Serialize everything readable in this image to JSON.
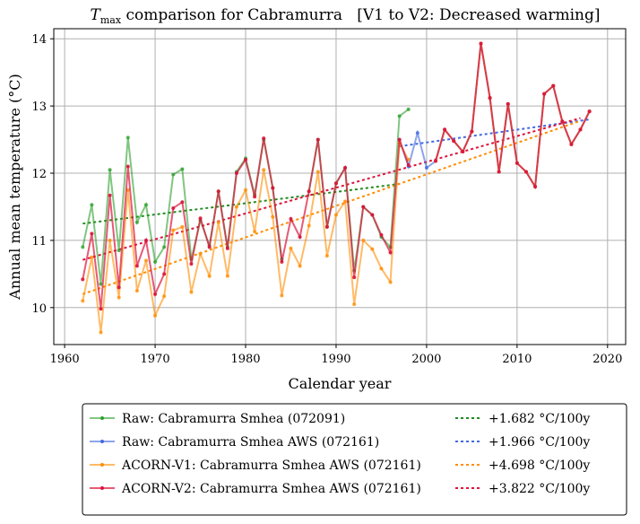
{
  "chart_data": {
    "type": "line",
    "title_var": "T",
    "title_sub": "max",
    "title": " comparison for Cabramurra   [V1 to V2: Decreased warming]",
    "xlabel": "Calendar year",
    "ylabel": "Annual mean temperature (°C)",
    "xlim": [
      1958.8,
      2022
    ],
    "ylim": [
      9.45,
      14.15
    ],
    "xticks": [
      1960,
      1970,
      1980,
      1990,
      2000,
      2010,
      2020
    ],
    "yticks": [
      10,
      11,
      12,
      13,
      14
    ],
    "grid": true,
    "legend_placement": "below",
    "series": [
      {
        "name": "Raw: Cabramurra Smhea (072091)",
        "color": "#2ca02c",
        "alpha": 0.6,
        "start": 1962,
        "values": [
          10.9,
          11.53,
          10.35,
          12.05,
          10.85,
          12.53,
          11.27,
          11.53,
          10.68,
          10.9,
          11.98,
          12.06,
          10.72,
          11.3,
          10.92,
          11.73,
          10.9,
          12.02,
          12.22,
          11.68,
          12.5,
          11.78,
          10.72,
          null,
          null,
          11.73,
          12.5,
          11.2,
          11.85,
          12.08,
          10.55,
          11.5,
          11.38,
          11.05,
          10.9,
          12.85,
          12.95
        ],
        "trend_label": "+1.682 °C/100y",
        "trend_color": "#228b22",
        "trend": [
          1962,
          11.25,
          1997,
          11.84
        ]
      },
      {
        "name": "Raw: Cabramurra Smhea AWS (072161)",
        "color": "#4169e1",
        "alpha": 0.6,
        "start": 1997,
        "values": [
          12.5,
          12.1,
          12.6,
          12.08,
          12.18,
          12.65,
          12.48,
          12.32,
          12.62,
          13.93,
          13.12,
          12.02,
          13.03,
          12.15,
          12.02,
          11.8,
          13.18,
          13.3,
          12.77,
          12.43,
          12.65,
          12.92
        ],
        "trend_label": "+1.966 °C/100y",
        "trend_color": "#4169e1",
        "trend": [
          1997,
          12.4,
          2018,
          12.8
        ]
      },
      {
        "name": "ACORN-V1: Cabramurra Smhea AWS (072161)",
        "color": "#ff8c00",
        "alpha": 0.6,
        "start": 1962,
        "values": [
          10.1,
          10.75,
          9.63,
          11.0,
          10.15,
          11.75,
          10.25,
          10.7,
          9.88,
          10.17,
          11.15,
          11.2,
          10.23,
          10.8,
          10.47,
          11.27,
          10.47,
          11.5,
          11.75,
          11.13,
          12.05,
          11.35,
          10.18,
          10.88,
          10.62,
          11.22,
          12.02,
          10.77,
          11.38,
          11.58,
          10.05,
          11.0,
          10.87,
          10.58,
          10.38,
          12.45,
          12.2,
          null,
          null,
          12.18,
          12.65,
          12.48,
          12.32,
          12.62,
          13.93,
          13.12,
          12.02,
          13.03,
          12.15,
          12.02,
          11.8,
          13.18,
          13.3,
          12.77,
          12.43,
          12.65,
          12.92
        ],
        "trend_label": "+4.698 °C/100y",
        "trend_color": "#ff8c00",
        "trend": [
          1962,
          10.2,
          2017,
          12.78
        ]
      },
      {
        "name": "ACORN-V2: Cabramurra Smhea AWS (072161)",
        "color": "#dc143c",
        "alpha": 0.7,
        "start": 1962,
        "values": [
          10.42,
          11.1,
          9.98,
          11.67,
          10.3,
          12.1,
          10.62,
          11.0,
          10.2,
          10.5,
          11.48,
          11.57,
          10.65,
          11.33,
          10.9,
          11.73,
          10.88,
          12.0,
          12.2,
          11.65,
          12.52,
          11.78,
          10.68,
          11.32,
          11.05,
          11.73,
          12.5,
          11.2,
          11.85,
          12.08,
          10.45,
          11.5,
          11.38,
          11.08,
          10.82,
          12.5,
          12.12,
          null,
          null,
          12.18,
          12.65,
          12.48,
          12.32,
          12.62,
          13.93,
          13.12,
          12.02,
          13.03,
          12.15,
          12.02,
          11.8,
          13.18,
          13.3,
          12.77,
          12.43,
          12.65,
          12.92
        ],
        "trend_label": "+3.822 °C/100y",
        "trend_color": "#dc143c",
        "trend": [
          1962,
          10.71,
          2017,
          12.82
        ]
      }
    ]
  }
}
